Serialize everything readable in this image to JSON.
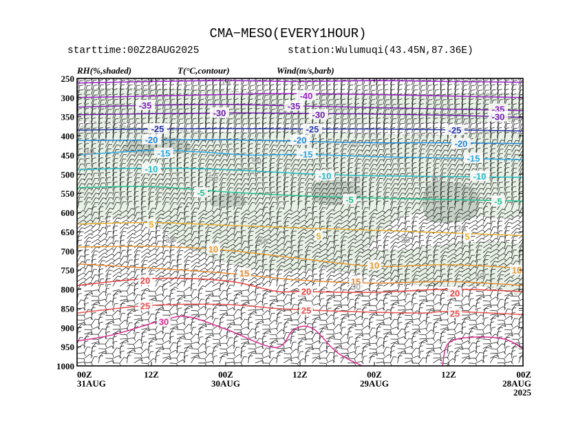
{
  "title": "CMA−MESO(EVERY1HOUR)",
  "starttime": "starttime:00Z28AUG2025",
  "station": "station:Wulumuqi(43.45N,87.36E)",
  "chart_data": {
    "type": "time-height cross-section",
    "header_labels": {
      "rh": "RH(%,shaded)",
      "temp": "T(°C,contour)",
      "wind": "Wind(m/s,barb)"
    },
    "y_axis": {
      "label": "",
      "ticks": [
        "250",
        "300",
        "350",
        "400",
        "450",
        "500",
        "550",
        "600",
        "650",
        "700",
        "750",
        "800",
        "850",
        "900",
        "950",
        "1000"
      ],
      "range_hpa": [
        250,
        1000
      ]
    },
    "x_axis": {
      "range_hours": [
        72,
        0
      ],
      "ticks": [
        {
          "hour": 72,
          "line1": "00Z",
          "line2": "31AUG",
          "line3": ""
        },
        {
          "hour": 60,
          "line1": "12Z",
          "line2": "",
          "line3": ""
        },
        {
          "hour": 48,
          "line1": "00Z",
          "line2": "30AUG",
          "line3": ""
        },
        {
          "hour": 36,
          "line1": "12Z",
          "line2": "",
          "line3": ""
        },
        {
          "hour": 24,
          "line1": "00Z",
          "line2": "29AUG",
          "line3": ""
        },
        {
          "hour": 12,
          "line1": "12Z",
          "line2": "",
          "line3": ""
        },
        {
          "hour": 0,
          "line1": "00Z",
          "line2": "28AUG",
          "line3": "2025"
        }
      ]
    },
    "temperature_contours": [
      {
        "value": -40,
        "color": "#9a1fc8",
        "pts": [
          [
            72,
            262
          ],
          [
            60,
            258
          ],
          [
            48,
            256
          ],
          [
            36,
            258
          ],
          [
            24,
            256
          ],
          [
            12,
            258
          ],
          [
            0,
            260
          ]
        ],
        "labels": []
      },
      {
        "value": -40,
        "color": "#9a1fc8",
        "pts": [
          [
            72,
            300
          ],
          [
            60,
            296
          ],
          [
            48,
            292
          ],
          [
            42,
            290
          ],
          [
            36,
            290
          ],
          [
            24,
            292
          ],
          [
            12,
            296
          ],
          [
            0,
            300
          ]
        ],
        "labels": [
          {
            "text": "-40",
            "h": 35,
            "p": 295
          }
        ]
      },
      {
        "value": -35,
        "color": "#7a1fb2",
        "pts": [
          [
            72,
            325
          ],
          [
            60,
            320
          ],
          [
            48,
            318
          ],
          [
            36,
            322
          ],
          [
            24,
            326
          ],
          [
            12,
            330
          ],
          [
            0,
            334
          ]
        ],
        "labels": [
          {
            "text": "-35",
            "h": 61,
            "p": 320
          },
          {
            "text": "-35",
            "h": 37,
            "p": 322
          },
          {
            "text": "-35",
            "h": 4,
            "p": 330
          }
        ]
      },
      {
        "value": -30,
        "color": "#6a1aa8",
        "pts": [
          [
            72,
            345
          ],
          [
            60,
            342
          ],
          [
            48,
            340
          ],
          [
            36,
            341
          ],
          [
            24,
            343
          ],
          [
            12,
            346
          ],
          [
            0,
            352
          ]
        ],
        "labels": [
          {
            "text": "-30",
            "h": 49,
            "p": 340
          },
          {
            "text": "-30",
            "h": 33,
            "p": 344
          },
          {
            "text": "-30",
            "h": 4,
            "p": 350
          }
        ]
      },
      {
        "value": -25,
        "color": "#2233a8",
        "pts": [
          [
            72,
            385
          ],
          [
            60,
            382
          ],
          [
            48,
            381
          ],
          [
            36,
            382
          ],
          [
            24,
            382
          ],
          [
            12,
            384
          ],
          [
            0,
            387
          ]
        ],
        "labels": [
          {
            "text": "-25",
            "h": 59,
            "p": 381
          },
          {
            "text": "-25",
            "h": 34,
            "p": 382
          },
          {
            "text": "-25",
            "h": 11,
            "p": 385
          }
        ]
      },
      {
        "value": -20,
        "color": "#1f86d6",
        "pts": [
          [
            72,
            412
          ],
          [
            60,
            411
          ],
          [
            48,
            410
          ],
          [
            36,
            414
          ],
          [
            24,
            418
          ],
          [
            12,
            418
          ],
          [
            0,
            420
          ]
        ],
        "labels": [
          {
            "text": "-20",
            "h": 60,
            "p": 410
          },
          {
            "text": "-20",
            "h": 36,
            "p": 411
          },
          {
            "text": "-20",
            "h": 10,
            "p": 420
          }
        ]
      },
      {
        "value": -15,
        "color": "#2aa6e0",
        "pts": [
          [
            72,
            450
          ],
          [
            60,
            438
          ],
          [
            52,
            442
          ],
          [
            44,
            450
          ],
          [
            36,
            448
          ],
          [
            24,
            454
          ],
          [
            12,
            458
          ],
          [
            0,
            462
          ]
        ],
        "labels": [
          {
            "text": "-15",
            "h": 58,
            "p": 445
          },
          {
            "text": "-15",
            "h": 35,
            "p": 447
          },
          {
            "text": "-15",
            "h": 8,
            "p": 458
          }
        ]
      },
      {
        "value": -10,
        "color": "#20b8c0",
        "pts": [
          [
            72,
            488
          ],
          [
            60,
            484
          ],
          [
            48,
            488
          ],
          [
            36,
            498
          ],
          [
            24,
            504
          ],
          [
            12,
            506
          ],
          [
            0,
            508
          ]
        ],
        "labels": [
          {
            "text": "-10",
            "h": 60,
            "p": 486
          },
          {
            "text": "-10",
            "h": 32,
            "p": 504
          },
          {
            "text": "-10",
            "h": 7,
            "p": 505
          }
        ]
      },
      {
        "value": -5,
        "color": "#20c090",
        "pts": [
          [
            72,
            535
          ],
          [
            60,
            532
          ],
          [
            48,
            546
          ],
          [
            36,
            556
          ],
          [
            24,
            562
          ],
          [
            12,
            566
          ],
          [
            0,
            570
          ]
        ],
        "labels": [
          {
            "text": "-5",
            "h": 52,
            "p": 548
          },
          {
            "text": "-5",
            "h": 28,
            "p": 566
          },
          {
            "text": "-5",
            "h": 4,
            "p": 570
          }
        ]
      },
      {
        "value": 5,
        "color": "#e8b030",
        "pts": [
          [
            72,
            630
          ],
          [
            60,
            626
          ],
          [
            48,
            633
          ],
          [
            36,
            640
          ],
          [
            24,
            646
          ],
          [
            12,
            653
          ],
          [
            0,
            660
          ]
        ],
        "labels": [
          {
            "text": "5",
            "h": 60,
            "p": 630
          },
          {
            "text": "5",
            "h": 33,
            "p": 661
          },
          {
            "text": "5",
            "h": 9,
            "p": 662
          }
        ]
      },
      {
        "value": 10,
        "color": "#e89a30",
        "pts": [
          [
            72,
            690
          ],
          [
            60,
            688
          ],
          [
            48,
            698
          ],
          [
            36,
            720
          ],
          [
            24,
            740
          ],
          [
            12,
            736
          ],
          [
            0,
            745
          ]
        ],
        "labels": [
          {
            "text": "10",
            "h": 50,
            "p": 695
          },
          {
            "text": "10",
            "h": 24,
            "p": 737
          },
          {
            "text": "10",
            "h": 1,
            "p": 750
          }
        ]
      },
      {
        "value": 15,
        "color": "#e88a30",
        "pts": [
          [
            72,
            734
          ],
          [
            60,
            745
          ],
          [
            48,
            758
          ],
          [
            36,
            776
          ],
          [
            24,
            784
          ],
          [
            12,
            780
          ],
          [
            0,
            790
          ]
        ],
        "labels": [
          {
            "text": "15",
            "h": 45,
            "p": 758
          },
          {
            "text": "15",
            "h": 27,
            "p": 779
          }
        ]
      },
      {
        "value": 20,
        "color": "#e84040",
        "pts": [
          [
            72,
            790
          ],
          [
            60,
            772
          ],
          [
            48,
            778
          ],
          [
            40,
            805
          ],
          [
            36,
            806
          ],
          [
            24,
            808
          ],
          [
            12,
            800
          ],
          [
            0,
            806
          ]
        ],
        "labels": [
          {
            "text": "20",
            "h": 61,
            "p": 777
          },
          {
            "text": "20",
            "h": 35,
            "p": 805
          },
          {
            "text": "20",
            "h": 11,
            "p": 810
          }
        ]
      },
      {
        "value": 25,
        "color": "#e85050",
        "pts": [
          [
            72,
            862
          ],
          [
            60,
            842
          ],
          [
            48,
            840
          ],
          [
            40,
            850
          ],
          [
            36,
            853
          ],
          [
            32,
            856
          ],
          [
            24,
            860
          ],
          [
            16,
            862
          ],
          [
            12,
            858
          ],
          [
            0,
            866
          ]
        ],
        "labels": [
          {
            "text": "25",
            "h": 61,
            "p": 843
          },
          {
            "text": "25",
            "h": 35,
            "p": 855
          },
          {
            "text": "25",
            "h": 11,
            "p": 863
          }
        ]
      },
      {
        "value": 30,
        "color": "#d82a90",
        "pts": [
          [
            72,
            935
          ],
          [
            66,
            918
          ],
          [
            58,
            880
          ],
          [
            54,
            872
          ],
          [
            48,
            904
          ],
          [
            40,
            952
          ],
          [
            37,
            905
          ],
          [
            34,
            902
          ],
          [
            30,
            965
          ],
          [
            26,
            1000
          ]
        ],
        "labels": [
          {
            "text": "30",
            "h": 58,
            "p": 884
          }
        ]
      },
      {
        "value": 30,
        "color": "#d82a90",
        "pts": [
          [
            13,
            1000
          ],
          [
            12,
            940
          ],
          [
            8,
            925
          ],
          [
            3,
            930
          ],
          [
            0,
            955
          ]
        ],
        "labels": []
      }
    ],
    "rh_contour_labels": [
      {
        "text": "10",
        "h": 48,
        "p": 258
      },
      {
        "text": "30",
        "h": 70,
        "p": 440
      },
      {
        "text": "50",
        "h": 50,
        "p": 508
      },
      {
        "text": "50",
        "h": 43,
        "p": 465
      },
      {
        "text": "10",
        "h": 27,
        "p": 420
      },
      {
        "text": "30",
        "h": 27,
        "p": 515
      },
      {
        "text": "50",
        "h": 14,
        "p": 510
      },
      {
        "text": "30",
        "h": 10,
        "p": 640
      },
      {
        "text": "30",
        "h": 57,
        "p": 670
      },
      {
        "text": "30",
        "h": 42,
        "p": 675
      },
      {
        "text": "30",
        "h": 19,
        "p": 670
      },
      {
        "text": "30",
        "h": 27,
        "p": 793
      },
      {
        "text": "30",
        "h": 7,
        "p": 765
      }
    ],
    "rh_regions": [
      {
        "level": "light",
        "pts": [
          [
            72,
            282
          ],
          [
            50,
            282
          ],
          [
            40,
            290
          ],
          [
            28,
            288
          ],
          [
            16,
            292
          ],
          [
            0,
            294
          ],
          [
            0,
            360
          ],
          [
            72,
            360
          ]
        ]
      },
      {
        "level": "light",
        "pts": [
          [
            72,
            385
          ],
          [
            60,
            382
          ],
          [
            48,
            392
          ],
          [
            36,
            388
          ],
          [
            24,
            396
          ],
          [
            12,
            398
          ],
          [
            0,
            402
          ],
          [
            0,
            600
          ],
          [
            12,
            600
          ],
          [
            20,
            612
          ],
          [
            26,
            700
          ],
          [
            32,
            742
          ],
          [
            44,
            745
          ],
          [
            54,
            690
          ],
          [
            60,
            628
          ],
          [
            66,
            612
          ],
          [
            72,
            616
          ]
        ]
      },
      {
        "level": "light",
        "pts": [
          [
            32,
            742
          ],
          [
            26,
            760
          ],
          [
            16,
            790
          ],
          [
            6,
            792
          ],
          [
            0,
            808
          ],
          [
            0,
            690
          ],
          [
            10,
            680
          ],
          [
            20,
            700
          ],
          [
            26,
            700
          ]
        ]
      },
      {
        "level": "medium",
        "pts": [
          [
            64,
            420
          ],
          [
            60,
            404
          ],
          [
            55,
            410
          ],
          [
            54,
            440
          ],
          [
            60,
            448
          ],
          [
            64,
            440
          ]
        ]
      },
      {
        "level": "medium",
        "pts": [
          [
            34,
            530
          ],
          [
            30,
            515
          ],
          [
            26,
            540
          ],
          [
            28,
            575
          ],
          [
            33,
            575
          ]
        ]
      },
      {
        "level": "medium",
        "pts": [
          [
            16,
            555
          ],
          [
            14,
            520
          ],
          [
            8,
            540
          ],
          [
            8,
            612
          ],
          [
            15,
            622
          ]
        ]
      },
      {
        "level": "medium",
        "pts": [
          [
            50,
            558
          ],
          [
            46,
            552
          ],
          [
            45,
            580
          ],
          [
            50,
            582
          ]
        ]
      }
    ]
  }
}
